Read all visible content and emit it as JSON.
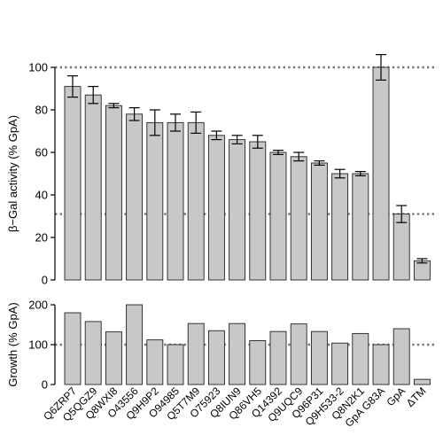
{
  "chart_data": [
    {
      "type": "bar",
      "ylabel": "β−Gal activity (% GpA)",
      "ylim": [
        0,
        100
      ],
      "yticks": [
        0,
        20,
        40,
        60,
        80,
        100
      ],
      "reference_lines": [
        100,
        31
      ],
      "bar_color": "#c8c8c8",
      "categories": [
        "Q6ZRP7",
        "Q5QGZ9",
        "Q8WXI8",
        "O43556",
        "Q9H9P2",
        "O94985",
        "Q5T7M9",
        "O75923",
        "Q8IUN9",
        "Q86VH5",
        "Q14392",
        "Q9UQC9",
        "Q96P31",
        "Q9H533-2",
        "Q8N2K1",
        "GpA G83A",
        "GpA",
        "ΔTM"
      ],
      "values": [
        91,
        87,
        82,
        78,
        74,
        74,
        74,
        68,
        66,
        65,
        60,
        58,
        55,
        50,
        50,
        100,
        31,
        9
      ],
      "errors": [
        5,
        4,
        1,
        3,
        6,
        4,
        5,
        2,
        2,
        3,
        1,
        2,
        1,
        2,
        1,
        6,
        4,
        1
      ]
    },
    {
      "type": "bar",
      "ylabel": "Growth (% GpA)",
      "ylim": [
        0,
        200
      ],
      "yticks": [
        0,
        100,
        200
      ],
      "reference_lines": [
        100
      ],
      "bar_color": "#c8c8c8",
      "categories": [
        "Q6ZRP7",
        "Q5QGZ9",
        "Q8WXI8",
        "O43556",
        "Q9H9P2",
        "O94985",
        "Q5T7M9",
        "O75923",
        "Q8IUN9",
        "Q86VH5",
        "Q14392",
        "Q9UQC9",
        "Q96P31",
        "Q9H533-2",
        "Q8N2K1",
        "GpA G83A",
        "GpA",
        "ΔTM"
      ],
      "values": [
        180,
        158,
        132,
        200,
        112,
        100,
        153,
        135,
        153,
        110,
        133,
        152,
        133,
        104,
        128,
        100,
        140,
        13
      ]
    }
  ]
}
